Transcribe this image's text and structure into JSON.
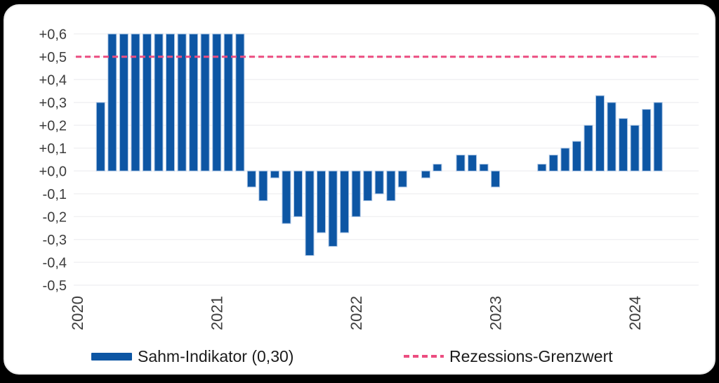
{
  "card": {
    "background": "#ffffff",
    "page_background": "#000000"
  },
  "chart_data": {
    "type": "bar",
    "title": "",
    "grid": true,
    "ylim": [
      -0.5,
      0.6
    ],
    "y_axis": {
      "tick_labels": [
        "+0,6",
        "+0,5",
        "+0,4",
        "+0,3",
        "+0,2",
        "+0,1",
        "+0,0",
        "-0,1",
        "-0,2",
        "-0,3",
        "-0,4",
        "-0,5"
      ],
      "tick_values": [
        0.6,
        0.5,
        0.4,
        0.3,
        0.2,
        0.1,
        0.0,
        -0.1,
        -0.2,
        -0.3,
        -0.4,
        -0.5
      ]
    },
    "x_axis": {
      "tick_labels": [
        "2020",
        "2021",
        "2022",
        "2023",
        "2024"
      ],
      "tick_month_indices": [
        0,
        12,
        24,
        36,
        48
      ]
    },
    "series": [
      {
        "name": "Sahm-Indikator",
        "color": "#0d56a4",
        "bar_stroke_color": "#adc6e5",
        "frequency": "monthly",
        "start_month": "2020-01",
        "display_cap": 0.6,
        "values": [
          0,
          0,
          0.3,
          0.6,
          0.6,
          0.6,
          0.6,
          0.6,
          0.6,
          0.6,
          0.6,
          0.6,
          0.6,
          0.6,
          0.6,
          -0.07,
          -0.13,
          -0.03,
          -0.23,
          -0.2,
          -0.37,
          -0.27,
          -0.33,
          -0.27,
          -0.2,
          -0.13,
          -0.1,
          -0.13,
          -0.07,
          0,
          -0.03,
          0.03,
          0,
          0.07,
          0.07,
          0.03,
          -0.07,
          0,
          0,
          0,
          0.03,
          0.07,
          0.1,
          0.13,
          0.2,
          0.33,
          0.3,
          0.23,
          0.2,
          0.27,
          0.3
        ]
      }
    ],
    "threshold": {
      "name": "Rezessions-Grenzwert",
      "value": 0.5,
      "color": "#ec4d80",
      "style": "dashed"
    },
    "legend": [
      {
        "label": "Sahm-Indikator (0,30)",
        "swatch": "bar",
        "color": "#0d56a4"
      },
      {
        "label": "Rezessions-Grenzwert",
        "swatch": "dashed-line",
        "color": "#ec4d80"
      }
    ],
    "gridline_color": "#f1f1f3",
    "tick_text_color": "#3d3d3d"
  }
}
